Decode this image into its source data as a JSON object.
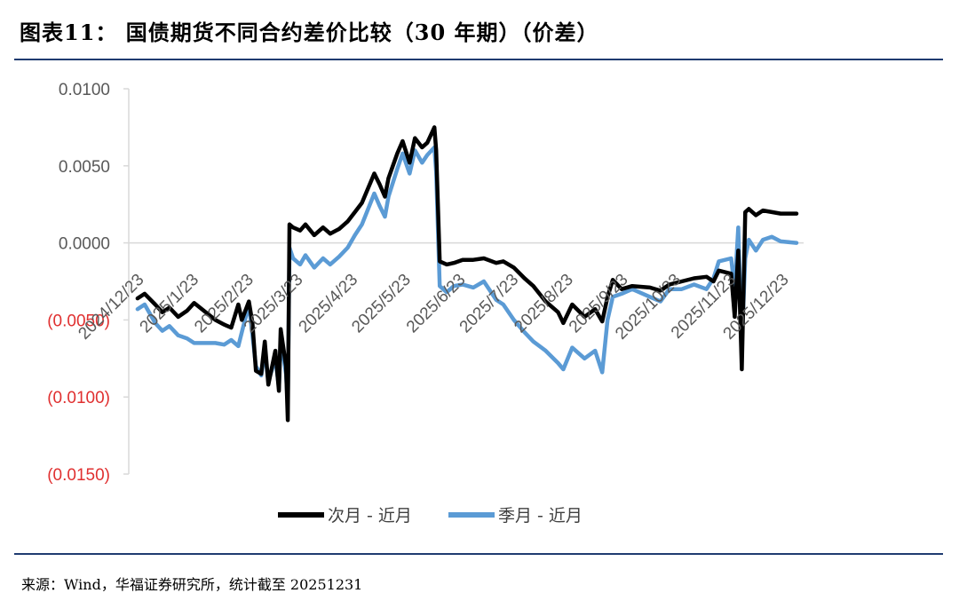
{
  "header": {
    "title": "图表11：  国债期货不同合约差价比较（30 年期）（价差）"
  },
  "footer": {
    "source": "来源：Wind，华福证券研究所，统计截至 20251231"
  },
  "chart_data": {
    "type": "line",
    "title": "",
    "xlabel": "",
    "ylabel": "",
    "ylim": [
      -0.015,
      0.01
    ],
    "y_ticks": [
      0.01,
      0.005,
      0.0,
      -0.005,
      -0.01,
      -0.015
    ],
    "y_tick_labels": [
      "0.0100",
      "0.0050",
      "0.0000",
      "(0.0050)",
      "(0.0100)",
      "(0.0150)"
    ],
    "negative_label_color": "#e03030",
    "positive_label_color": "#595959",
    "x_tick_labels": [
      "2024/12/23",
      "2025/1/23",
      "2025/2/23",
      "2025/3/23",
      "2025/4/23",
      "2025/5/23",
      "2025/6/23",
      "2025/7/23",
      "2025/8/23",
      "2025/9/23",
      "2025/10/23",
      "2025/11/23",
      "2025/12/23"
    ],
    "legend_position": "bottom",
    "series": [
      {
        "name": "次月 - 近月",
        "color": "#000000",
        "points": [
          [
            "2024-12-23",
            -0.0036
          ],
          [
            "2024-12-27",
            -0.0033
          ],
          [
            "2025-01-02",
            -0.004
          ],
          [
            "2025-01-06",
            -0.0045
          ],
          [
            "2025-01-10",
            -0.0042
          ],
          [
            "2025-01-15",
            -0.0048
          ],
          [
            "2025-01-20",
            -0.0044
          ],
          [
            "2025-01-24",
            -0.0039
          ],
          [
            "2025-02-05",
            -0.005
          ],
          [
            "2025-02-10",
            -0.0053
          ],
          [
            "2025-02-14",
            -0.0055
          ],
          [
            "2025-02-18",
            -0.004
          ],
          [
            "2025-02-20",
            -0.005
          ],
          [
            "2025-02-24",
            -0.0038
          ],
          [
            "2025-02-26",
            -0.0052
          ],
          [
            "2025-02-28",
            -0.0083
          ],
          [
            "2025-03-03",
            -0.0085
          ],
          [
            "2025-03-05",
            -0.0064
          ],
          [
            "2025-03-07",
            -0.0092
          ],
          [
            "2025-03-11",
            -0.007
          ],
          [
            "2025-03-13",
            -0.0096
          ],
          [
            "2025-03-14",
            -0.0056
          ],
          [
            "2025-03-17",
            -0.008
          ],
          [
            "2025-03-18",
            -0.0115
          ],
          [
            "2025-03-19",
            0.0012
          ],
          [
            "2025-03-21",
            0.001
          ],
          [
            "2025-03-25",
            0.0008
          ],
          [
            "2025-03-28",
            0.0012
          ],
          [
            "2025-04-02",
            0.0005
          ],
          [
            "2025-04-07",
            0.001
          ],
          [
            "2025-04-11",
            0.0006
          ],
          [
            "2025-04-16",
            0.0009
          ],
          [
            "2025-04-21",
            0.0014
          ],
          [
            "2025-04-25",
            0.002
          ],
          [
            "2025-04-29",
            0.0026
          ],
          [
            "2025-05-06",
            0.0045
          ],
          [
            "2025-05-09",
            0.0038
          ],
          [
            "2025-05-12",
            0.003
          ],
          [
            "2025-05-14",
            0.0042
          ],
          [
            "2025-05-19",
            0.0058
          ],
          [
            "2025-05-22",
            0.0066
          ],
          [
            "2025-05-26",
            0.0052
          ],
          [
            "2025-05-29",
            0.0068
          ],
          [
            "2025-06-02",
            0.0062
          ],
          [
            "2025-06-05",
            0.0065
          ],
          [
            "2025-06-09",
            0.0075
          ],
          [
            "2025-06-10",
            0.006
          ],
          [
            "2025-06-12",
            -0.0012
          ],
          [
            "2025-06-16",
            -0.0014
          ],
          [
            "2025-06-20",
            -0.0013
          ],
          [
            "2025-06-25",
            -0.0011
          ],
          [
            "2025-07-01",
            -0.0011
          ],
          [
            "2025-07-07",
            -0.001
          ],
          [
            "2025-07-14",
            -0.0013
          ],
          [
            "2025-07-18",
            -0.0012
          ],
          [
            "2025-07-24",
            -0.0016
          ],
          [
            "2025-07-30",
            -0.0023
          ],
          [
            "2025-08-04",
            -0.0028
          ],
          [
            "2025-08-11",
            -0.0038
          ],
          [
            "2025-08-18",
            -0.0045
          ],
          [
            "2025-08-21",
            -0.0052
          ],
          [
            "2025-08-26",
            -0.004
          ],
          [
            "2025-09-02",
            -0.0048
          ],
          [
            "2025-09-08",
            -0.0043
          ],
          [
            "2025-09-12",
            -0.0051
          ],
          [
            "2025-09-15",
            -0.0035
          ],
          [
            "2025-09-18",
            -0.0024
          ],
          [
            "2025-09-23",
            -0.003
          ],
          [
            "2025-09-29",
            -0.0028
          ],
          [
            "2025-10-09",
            -0.0029
          ],
          [
            "2025-10-15",
            -0.0031
          ],
          [
            "2025-10-20",
            -0.0027
          ],
          [
            "2025-10-27",
            -0.0025
          ],
          [
            "2025-11-03",
            -0.0023
          ],
          [
            "2025-11-10",
            -0.0022
          ],
          [
            "2025-11-14",
            -0.0025
          ],
          [
            "2025-11-17",
            -0.0018
          ],
          [
            "2025-11-24",
            -0.002
          ],
          [
            "2025-11-26",
            -0.0048
          ],
          [
            "2025-11-28",
            -0.0005
          ],
          [
            "2025-11-30",
            -0.0082
          ],
          [
            "2025-12-02",
            0.002
          ],
          [
            "2025-12-04",
            0.0022
          ],
          [
            "2025-12-08",
            0.0018
          ],
          [
            "2025-12-12",
            0.0021
          ],
          [
            "2025-12-17",
            0.002
          ],
          [
            "2025-12-22",
            0.0019
          ],
          [
            "2025-12-31",
            0.0019
          ]
        ]
      },
      {
        "name": "季月 - 近月",
        "color": "#5b9bd5",
        "points": [
          [
            "2024-12-23",
            -0.0043
          ],
          [
            "2024-12-27",
            -0.004
          ],
          [
            "2025-01-02",
            -0.0052
          ],
          [
            "2025-01-06",
            -0.0057
          ],
          [
            "2025-01-10",
            -0.0054
          ],
          [
            "2025-01-15",
            -0.006
          ],
          [
            "2025-01-20",
            -0.0062
          ],
          [
            "2025-01-24",
            -0.0065
          ],
          [
            "2025-02-05",
            -0.0065
          ],
          [
            "2025-02-10",
            -0.0066
          ],
          [
            "2025-02-14",
            -0.0063
          ],
          [
            "2025-02-18",
            -0.0067
          ],
          [
            "2025-02-20",
            -0.0058
          ],
          [
            "2025-02-24",
            -0.004
          ],
          [
            "2025-02-26",
            -0.006
          ],
          [
            "2025-02-28",
            -0.008
          ],
          [
            "2025-03-03",
            -0.0086
          ],
          [
            "2025-03-05",
            -0.007
          ],
          [
            "2025-03-07",
            -0.009
          ],
          [
            "2025-03-11",
            -0.0075
          ],
          [
            "2025-03-13",
            -0.0094
          ],
          [
            "2025-03-14",
            -0.0062
          ],
          [
            "2025-03-17",
            -0.0085
          ],
          [
            "2025-03-18",
            -0.0105
          ],
          [
            "2025-03-19",
            -0.0003
          ],
          [
            "2025-03-21",
            -0.001
          ],
          [
            "2025-03-25",
            -0.0014
          ],
          [
            "2025-03-28",
            -0.0008
          ],
          [
            "2025-04-02",
            -0.0016
          ],
          [
            "2025-04-07",
            -0.001
          ],
          [
            "2025-04-11",
            -0.0014
          ],
          [
            "2025-04-16",
            -0.0009
          ],
          [
            "2025-04-21",
            -0.0003
          ],
          [
            "2025-04-25",
            0.0005
          ],
          [
            "2025-04-29",
            0.0012
          ],
          [
            "2025-05-06",
            0.0032
          ],
          [
            "2025-05-09",
            0.0024
          ],
          [
            "2025-05-12",
            0.0017
          ],
          [
            "2025-05-14",
            0.003
          ],
          [
            "2025-05-19",
            0.0048
          ],
          [
            "2025-05-22",
            0.0058
          ],
          [
            "2025-05-26",
            0.0045
          ],
          [
            "2025-05-29",
            0.006
          ],
          [
            "2025-06-02",
            0.0052
          ],
          [
            "2025-06-05",
            0.0057
          ],
          [
            "2025-06-09",
            0.0062
          ],
          [
            "2025-06-10",
            0.0046
          ],
          [
            "2025-06-12",
            -0.0028
          ],
          [
            "2025-06-16",
            -0.0032
          ],
          [
            "2025-06-20",
            -0.0028
          ],
          [
            "2025-06-25",
            -0.0027
          ],
          [
            "2025-07-01",
            -0.0029
          ],
          [
            "2025-07-07",
            -0.0025
          ],
          [
            "2025-07-14",
            -0.0037
          ],
          [
            "2025-07-18",
            -0.004
          ],
          [
            "2025-07-24",
            -0.005
          ],
          [
            "2025-07-30",
            -0.0058
          ],
          [
            "2025-08-04",
            -0.0064
          ],
          [
            "2025-08-11",
            -0.007
          ],
          [
            "2025-08-18",
            -0.0078
          ],
          [
            "2025-08-21",
            -0.0082
          ],
          [
            "2025-08-26",
            -0.0068
          ],
          [
            "2025-09-02",
            -0.0075
          ],
          [
            "2025-09-08",
            -0.007
          ],
          [
            "2025-09-12",
            -0.0084
          ],
          [
            "2025-09-15",
            -0.005
          ],
          [
            "2025-09-18",
            -0.0035
          ],
          [
            "2025-09-23",
            -0.0033
          ],
          [
            "2025-09-29",
            -0.003
          ],
          [
            "2025-10-09",
            -0.0035
          ],
          [
            "2025-10-15",
            -0.0038
          ],
          [
            "2025-10-20",
            -0.003
          ],
          [
            "2025-10-27",
            -0.003
          ],
          [
            "2025-11-03",
            -0.0027
          ],
          [
            "2025-11-10",
            -0.003
          ],
          [
            "2025-11-14",
            -0.0023
          ],
          [
            "2025-11-17",
            -0.0012
          ],
          [
            "2025-11-24",
            -0.001
          ],
          [
            "2025-11-26",
            -0.003
          ],
          [
            "2025-11-28",
            0.001
          ],
          [
            "2025-11-30",
            -0.0065
          ],
          [
            "2025-12-02",
            -0.001
          ],
          [
            "2025-12-04",
            0.0002
          ],
          [
            "2025-12-08",
            -0.0005
          ],
          [
            "2025-12-12",
            0.0002
          ],
          [
            "2025-12-17",
            0.0004
          ],
          [
            "2025-12-22",
            0.0001
          ],
          [
            "2025-12-31",
            0.0
          ]
        ]
      }
    ]
  }
}
